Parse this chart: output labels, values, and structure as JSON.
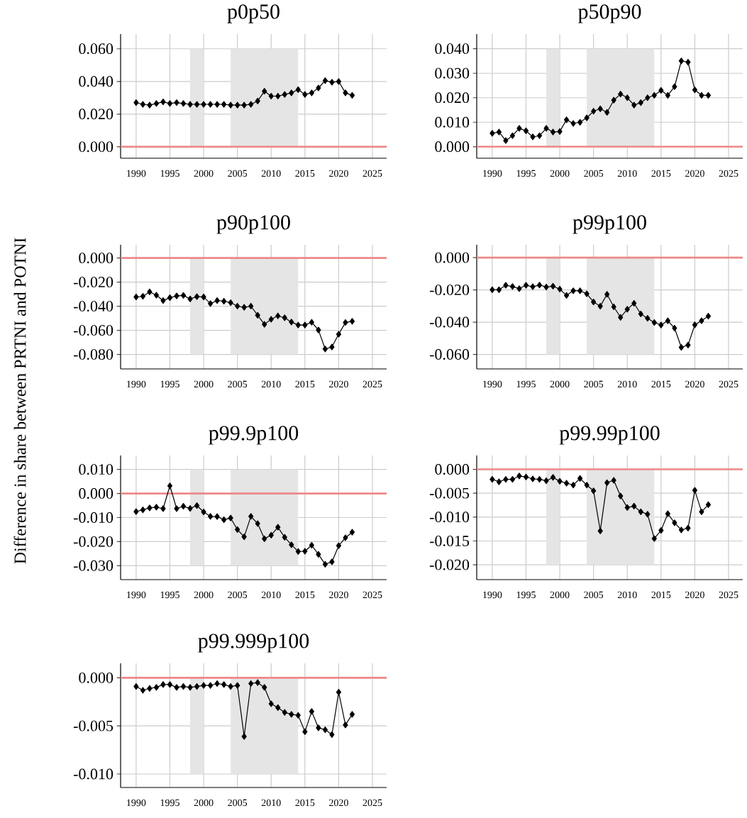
{
  "chart_data": [
    {
      "type": "line",
      "title": "p0p50",
      "ylabel": "Difference in share between PRTNI and POTNI",
      "color": "#000000",
      "marker": "diamond",
      "grid": true,
      "x": [
        1990,
        1991,
        1992,
        1993,
        1994,
        1995,
        1996,
        1997,
        1998,
        1999,
        2000,
        2001,
        2002,
        2003,
        2004,
        2005,
        2006,
        2007,
        2008,
        2009,
        2010,
        2011,
        2012,
        2013,
        2014,
        2015,
        2016,
        2017,
        2018,
        2019,
        2020,
        2021,
        2022
      ],
      "values": [
        0.027,
        0.026,
        0.0255,
        0.0265,
        0.0275,
        0.0265,
        0.027,
        0.0265,
        0.026,
        0.026,
        0.026,
        0.026,
        0.026,
        0.026,
        0.0255,
        0.0255,
        0.0255,
        0.026,
        0.028,
        0.034,
        0.031,
        0.031,
        0.032,
        0.033,
        0.035,
        0.032,
        0.033,
        0.036,
        0.0405,
        0.0395,
        0.04,
        0.033,
        0.0315
      ],
      "xlim": [
        1987.7,
        2027.1
      ],
      "xticks": [
        1990,
        1995,
        2000,
        2005,
        2010,
        2015,
        2020,
        2025
      ],
      "ylim": [
        -0.007,
        0.069
      ],
      "yticks": [
        {
          "value": 0,
          "label": "0.000"
        },
        {
          "value": 0.02,
          "label": "0.020"
        },
        {
          "value": 0.04,
          "label": "0.040"
        },
        {
          "value": 0.06,
          "label": "0.060"
        }
      ],
      "ref_lines": [
        {
          "axis": "y",
          "value": 0,
          "color": "#ee8888"
        }
      ],
      "bands": [
        {
          "axis": "x",
          "from": 1998,
          "to": 2000,
          "color": "#e5e5e5"
        },
        {
          "axis": "x",
          "from": 2004,
          "to": 2014,
          "color": "#e5e5e5"
        }
      ]
    },
    {
      "type": "line",
      "title": "p50p90",
      "color": "#000000",
      "marker": "diamond",
      "grid": true,
      "x": [
        1990,
        1991,
        1992,
        1993,
        1994,
        1995,
        1996,
        1997,
        1998,
        1999,
        2000,
        2001,
        2002,
        2003,
        2004,
        2005,
        2006,
        2007,
        2008,
        2009,
        2010,
        2011,
        2012,
        2013,
        2014,
        2015,
        2016,
        2017,
        2018,
        2019,
        2020,
        2021,
        2022
      ],
      "values": [
        0.0055,
        0.006,
        0.0025,
        0.0045,
        0.0075,
        0.0065,
        0.004,
        0.0045,
        0.0075,
        0.006,
        0.0062,
        0.011,
        0.0095,
        0.01,
        0.0118,
        0.0145,
        0.0155,
        0.014,
        0.019,
        0.0215,
        0.02,
        0.017,
        0.018,
        0.02,
        0.021,
        0.023,
        0.021,
        0.0245,
        0.035,
        0.0345,
        0.0232,
        0.021,
        0.021
      ],
      "xlim": [
        1987.7,
        2027.1
      ],
      "xticks": [
        1990,
        1995,
        2000,
        2005,
        2010,
        2015,
        2020,
        2025
      ],
      "ylim": [
        -0.0047,
        0.046
      ],
      "yticks": [
        {
          "value": 0,
          "label": "0.000"
        },
        {
          "value": 0.01,
          "label": "0.010"
        },
        {
          "value": 0.02,
          "label": "0.020"
        },
        {
          "value": 0.03,
          "label": "0.030"
        },
        {
          "value": 0.04,
          "label": "0.040"
        }
      ],
      "ref_lines": [
        {
          "axis": "y",
          "value": 0,
          "color": "#ee8888"
        }
      ],
      "bands": [
        {
          "axis": "x",
          "from": 1998,
          "to": 2000,
          "color": "#e5e5e5"
        },
        {
          "axis": "x",
          "from": 2004,
          "to": 2014,
          "color": "#e5e5e5"
        }
      ]
    },
    {
      "type": "line",
      "title": "p90p100",
      "color": "#000000",
      "marker": "diamond",
      "grid": true,
      "x": [
        1990,
        1991,
        1992,
        1993,
        1994,
        1995,
        1996,
        1997,
        1998,
        1999,
        2000,
        2001,
        2002,
        2003,
        2004,
        2005,
        2006,
        2007,
        2008,
        2009,
        2010,
        2011,
        2012,
        2013,
        2014,
        2015,
        2016,
        2017,
        2018,
        2019,
        2020,
        2021,
        2022
      ],
      "values": [
        -0.0323,
        -0.0318,
        -0.0281,
        -0.0308,
        -0.0353,
        -0.0329,
        -0.0314,
        -0.031,
        -0.0339,
        -0.032,
        -0.0323,
        -0.0378,
        -0.0353,
        -0.0358,
        -0.037,
        -0.0399,
        -0.0409,
        -0.0399,
        -0.0475,
        -0.055,
        -0.0508,
        -0.048,
        -0.0496,
        -0.0531,
        -0.0556,
        -0.0556,
        -0.0533,
        -0.0597,
        -0.0755,
        -0.0738,
        -0.0632,
        -0.0535,
        -0.0525
      ],
      "xlim": [
        1987.7,
        2027.1
      ],
      "xticks": [
        1990,
        1995,
        2000,
        2005,
        2010,
        2015,
        2020,
        2025
      ],
      "ylim": [
        -0.092,
        0.011
      ],
      "yticks": [
        {
          "value": -0.08,
          "label": "-0.080"
        },
        {
          "value": -0.06,
          "label": "-0.060"
        },
        {
          "value": -0.04,
          "label": "-0.040"
        },
        {
          "value": -0.02,
          "label": "-0.020"
        },
        {
          "value": 0,
          "label": "0.000"
        }
      ],
      "ref_lines": [
        {
          "axis": "y",
          "value": 0,
          "color": "#ee8888"
        }
      ],
      "bands": [
        {
          "axis": "x",
          "from": 1998,
          "to": 2000,
          "color": "#e5e5e5"
        },
        {
          "axis": "x",
          "from": 2004,
          "to": 2014,
          "color": "#e5e5e5"
        }
      ]
    },
    {
      "type": "line",
      "title": "p99p100",
      "color": "#000000",
      "marker": "diamond",
      "grid": true,
      "x": [
        1990,
        1991,
        1992,
        1993,
        1994,
        1995,
        1996,
        1997,
        1998,
        1999,
        2000,
        2001,
        2002,
        2003,
        2004,
        2005,
        2006,
        2007,
        2008,
        2009,
        2010,
        2011,
        2012,
        2013,
        2014,
        2015,
        2016,
        2017,
        2018,
        2019,
        2020,
        2021,
        2022
      ],
      "values": [
        -0.0199,
        -0.0199,
        -0.0171,
        -0.0179,
        -0.0192,
        -0.0171,
        -0.018,
        -0.017,
        -0.0182,
        -0.0177,
        -0.0195,
        -0.0234,
        -0.0205,
        -0.0205,
        -0.0224,
        -0.0275,
        -0.0301,
        -0.0227,
        -0.0305,
        -0.037,
        -0.032,
        -0.0283,
        -0.0349,
        -0.0376,
        -0.0402,
        -0.0418,
        -0.0391,
        -0.0437,
        -0.0556,
        -0.0542,
        -0.0417,
        -0.0391,
        -0.0363
      ],
      "xlim": [
        1987.7,
        2027.1
      ],
      "xticks": [
        1990,
        1995,
        2000,
        2005,
        2010,
        2015,
        2020,
        2025
      ],
      "ylim": [
        -0.069,
        0.008
      ],
      "yticks": [
        {
          "value": -0.06,
          "label": "-0.060"
        },
        {
          "value": -0.04,
          "label": "-0.040"
        },
        {
          "value": -0.02,
          "label": "-0.020"
        },
        {
          "value": 0,
          "label": "0.000"
        }
      ],
      "ref_lines": [
        {
          "axis": "y",
          "value": 0,
          "color": "#ee8888"
        }
      ],
      "bands": [
        {
          "axis": "x",
          "from": 1998,
          "to": 2000,
          "color": "#e5e5e5"
        },
        {
          "axis": "x",
          "from": 2004,
          "to": 2014,
          "color": "#e5e5e5"
        }
      ]
    },
    {
      "type": "line",
      "title": "p99.9p100",
      "color": "#000000",
      "marker": "diamond",
      "grid": true,
      "x": [
        1990,
        1991,
        1992,
        1993,
        1994,
        1995,
        1996,
        1997,
        1998,
        1999,
        2000,
        2001,
        2002,
        2003,
        2004,
        2005,
        2006,
        2007,
        2008,
        2009,
        2010,
        2011,
        2012,
        2013,
        2014,
        2015,
        2016,
        2017,
        2018,
        2019,
        2020,
        2021,
        2022
      ],
      "values": [
        -0.0075,
        -0.0068,
        -0.006,
        -0.0057,
        -0.0063,
        0.0032,
        -0.0063,
        -0.0053,
        -0.0062,
        -0.005,
        -0.0077,
        -0.0095,
        -0.0096,
        -0.0109,
        -0.0102,
        -0.015,
        -0.018,
        -0.0095,
        -0.0125,
        -0.0188,
        -0.0173,
        -0.014,
        -0.0182,
        -0.0213,
        -0.0241,
        -0.024,
        -0.0215,
        -0.0253,
        -0.0294,
        -0.0284,
        -0.0217,
        -0.0184,
        -0.0161
      ],
      "xlim": [
        1987.7,
        2027.1
      ],
      "xticks": [
        1990,
        1995,
        2000,
        2005,
        2010,
        2015,
        2020,
        2025
      ],
      "ylim": [
        -0.0358,
        0.0158
      ],
      "yticks": [
        {
          "value": -0.03,
          "label": "-0.030"
        },
        {
          "value": -0.02,
          "label": "-0.020"
        },
        {
          "value": -0.01,
          "label": "-0.010"
        },
        {
          "value": 0,
          "label": "0.000"
        },
        {
          "value": 0.01,
          "label": "0.010"
        }
      ],
      "ref_lines": [
        {
          "axis": "y",
          "value": 0,
          "color": "#ee8888"
        }
      ],
      "bands": [
        {
          "axis": "x",
          "from": 1998,
          "to": 2000,
          "color": "#e5e5e5"
        },
        {
          "axis": "x",
          "from": 2004,
          "to": 2014,
          "color": "#e5e5e5"
        }
      ]
    },
    {
      "type": "line",
      "title": "p99.99p100",
      "color": "#000000",
      "marker": "diamond",
      "grid": true,
      "x": [
        1990,
        1991,
        1992,
        1993,
        1994,
        1995,
        1996,
        1997,
        1998,
        1999,
        2000,
        2001,
        2002,
        2003,
        2004,
        2005,
        2006,
        2007,
        2008,
        2009,
        2010,
        2011,
        2012,
        2013,
        2014,
        2015,
        2016,
        2017,
        2018,
        2019,
        2020,
        2021,
        2022
      ],
      "values": [
        -0.0021,
        -0.0026,
        -0.0021,
        -0.0021,
        -0.0014,
        -0.0016,
        -0.002,
        -0.0021,
        -0.0024,
        -0.0017,
        -0.0025,
        -0.0029,
        -0.0033,
        -0.0019,
        -0.0033,
        -0.0045,
        -0.0129,
        -0.0028,
        -0.0023,
        -0.0056,
        -0.008,
        -0.0077,
        -0.0089,
        -0.0094,
        -0.0145,
        -0.0128,
        -0.0093,
        -0.0112,
        -0.0127,
        -0.0123,
        -0.0044,
        -0.0089,
        -0.0074
      ],
      "xlim": [
        1987.7,
        2027.1
      ],
      "xticks": [
        1990,
        1995,
        2000,
        2005,
        2010,
        2015,
        2020,
        2025
      ],
      "ylim": [
        -0.0231,
        0.0029
      ],
      "yticks": [
        {
          "value": -0.02,
          "label": "-0.020"
        },
        {
          "value": -0.015,
          "label": "-0.015"
        },
        {
          "value": -0.01,
          "label": "-0.010"
        },
        {
          "value": -0.005,
          "label": "-0.005"
        },
        {
          "value": 0,
          "label": "0.000"
        }
      ],
      "ref_lines": [
        {
          "axis": "y",
          "value": 0,
          "color": "#ee8888"
        }
      ],
      "bands": [
        {
          "axis": "x",
          "from": 1998,
          "to": 2000,
          "color": "#e5e5e5"
        },
        {
          "axis": "x",
          "from": 2004,
          "to": 2014,
          "color": "#e5e5e5"
        }
      ]
    },
    {
      "type": "line",
      "title": "p99.999p100",
      "color": "#000000",
      "marker": "diamond",
      "grid": true,
      "x": [
        1990,
        1991,
        1992,
        1993,
        1994,
        1995,
        1996,
        1997,
        1998,
        1999,
        2000,
        2001,
        2002,
        2003,
        2004,
        2005,
        2006,
        2007,
        2008,
        2009,
        2010,
        2011,
        2012,
        2013,
        2014,
        2015,
        2016,
        2017,
        2018,
        2019,
        2020,
        2021,
        2022
      ],
      "values": [
        -0.0009,
        -0.0013,
        -0.0011,
        -0.001,
        -0.0007,
        -0.0007,
        -0.001,
        -0.0009,
        -0.001,
        -0.0009,
        -0.0008,
        -0.0008,
        -0.0006,
        -0.0007,
        -0.0009,
        -0.0008,
        -0.0061,
        -0.0006,
        -0.0005,
        -0.001,
        -0.0027,
        -0.0031,
        -0.0036,
        -0.0038,
        -0.0039,
        -0.0056,
        -0.0035,
        -0.0052,
        -0.0054,
        -0.0059,
        -0.0015,
        -0.0049,
        -0.0038
      ],
      "xlim": [
        1987.7,
        2027.1
      ],
      "xticks": [
        1990,
        1995,
        2000,
        2005,
        2010,
        2015,
        2020,
        2025
      ],
      "ylim": [
        -0.0114,
        0.0015
      ],
      "yticks": [
        {
          "value": -0.01,
          "label": "-0.010"
        },
        {
          "value": -0.005,
          "label": "-0.005"
        },
        {
          "value": 0,
          "label": "0.000"
        }
      ],
      "ref_lines": [
        {
          "axis": "y",
          "value": 0,
          "color": "#ee8888"
        }
      ],
      "bands": [
        {
          "axis": "x",
          "from": 1998,
          "to": 2000,
          "color": "#e5e5e5"
        },
        {
          "axis": "x",
          "from": 2004,
          "to": 2014,
          "color": "#e5e5e5"
        }
      ]
    }
  ]
}
